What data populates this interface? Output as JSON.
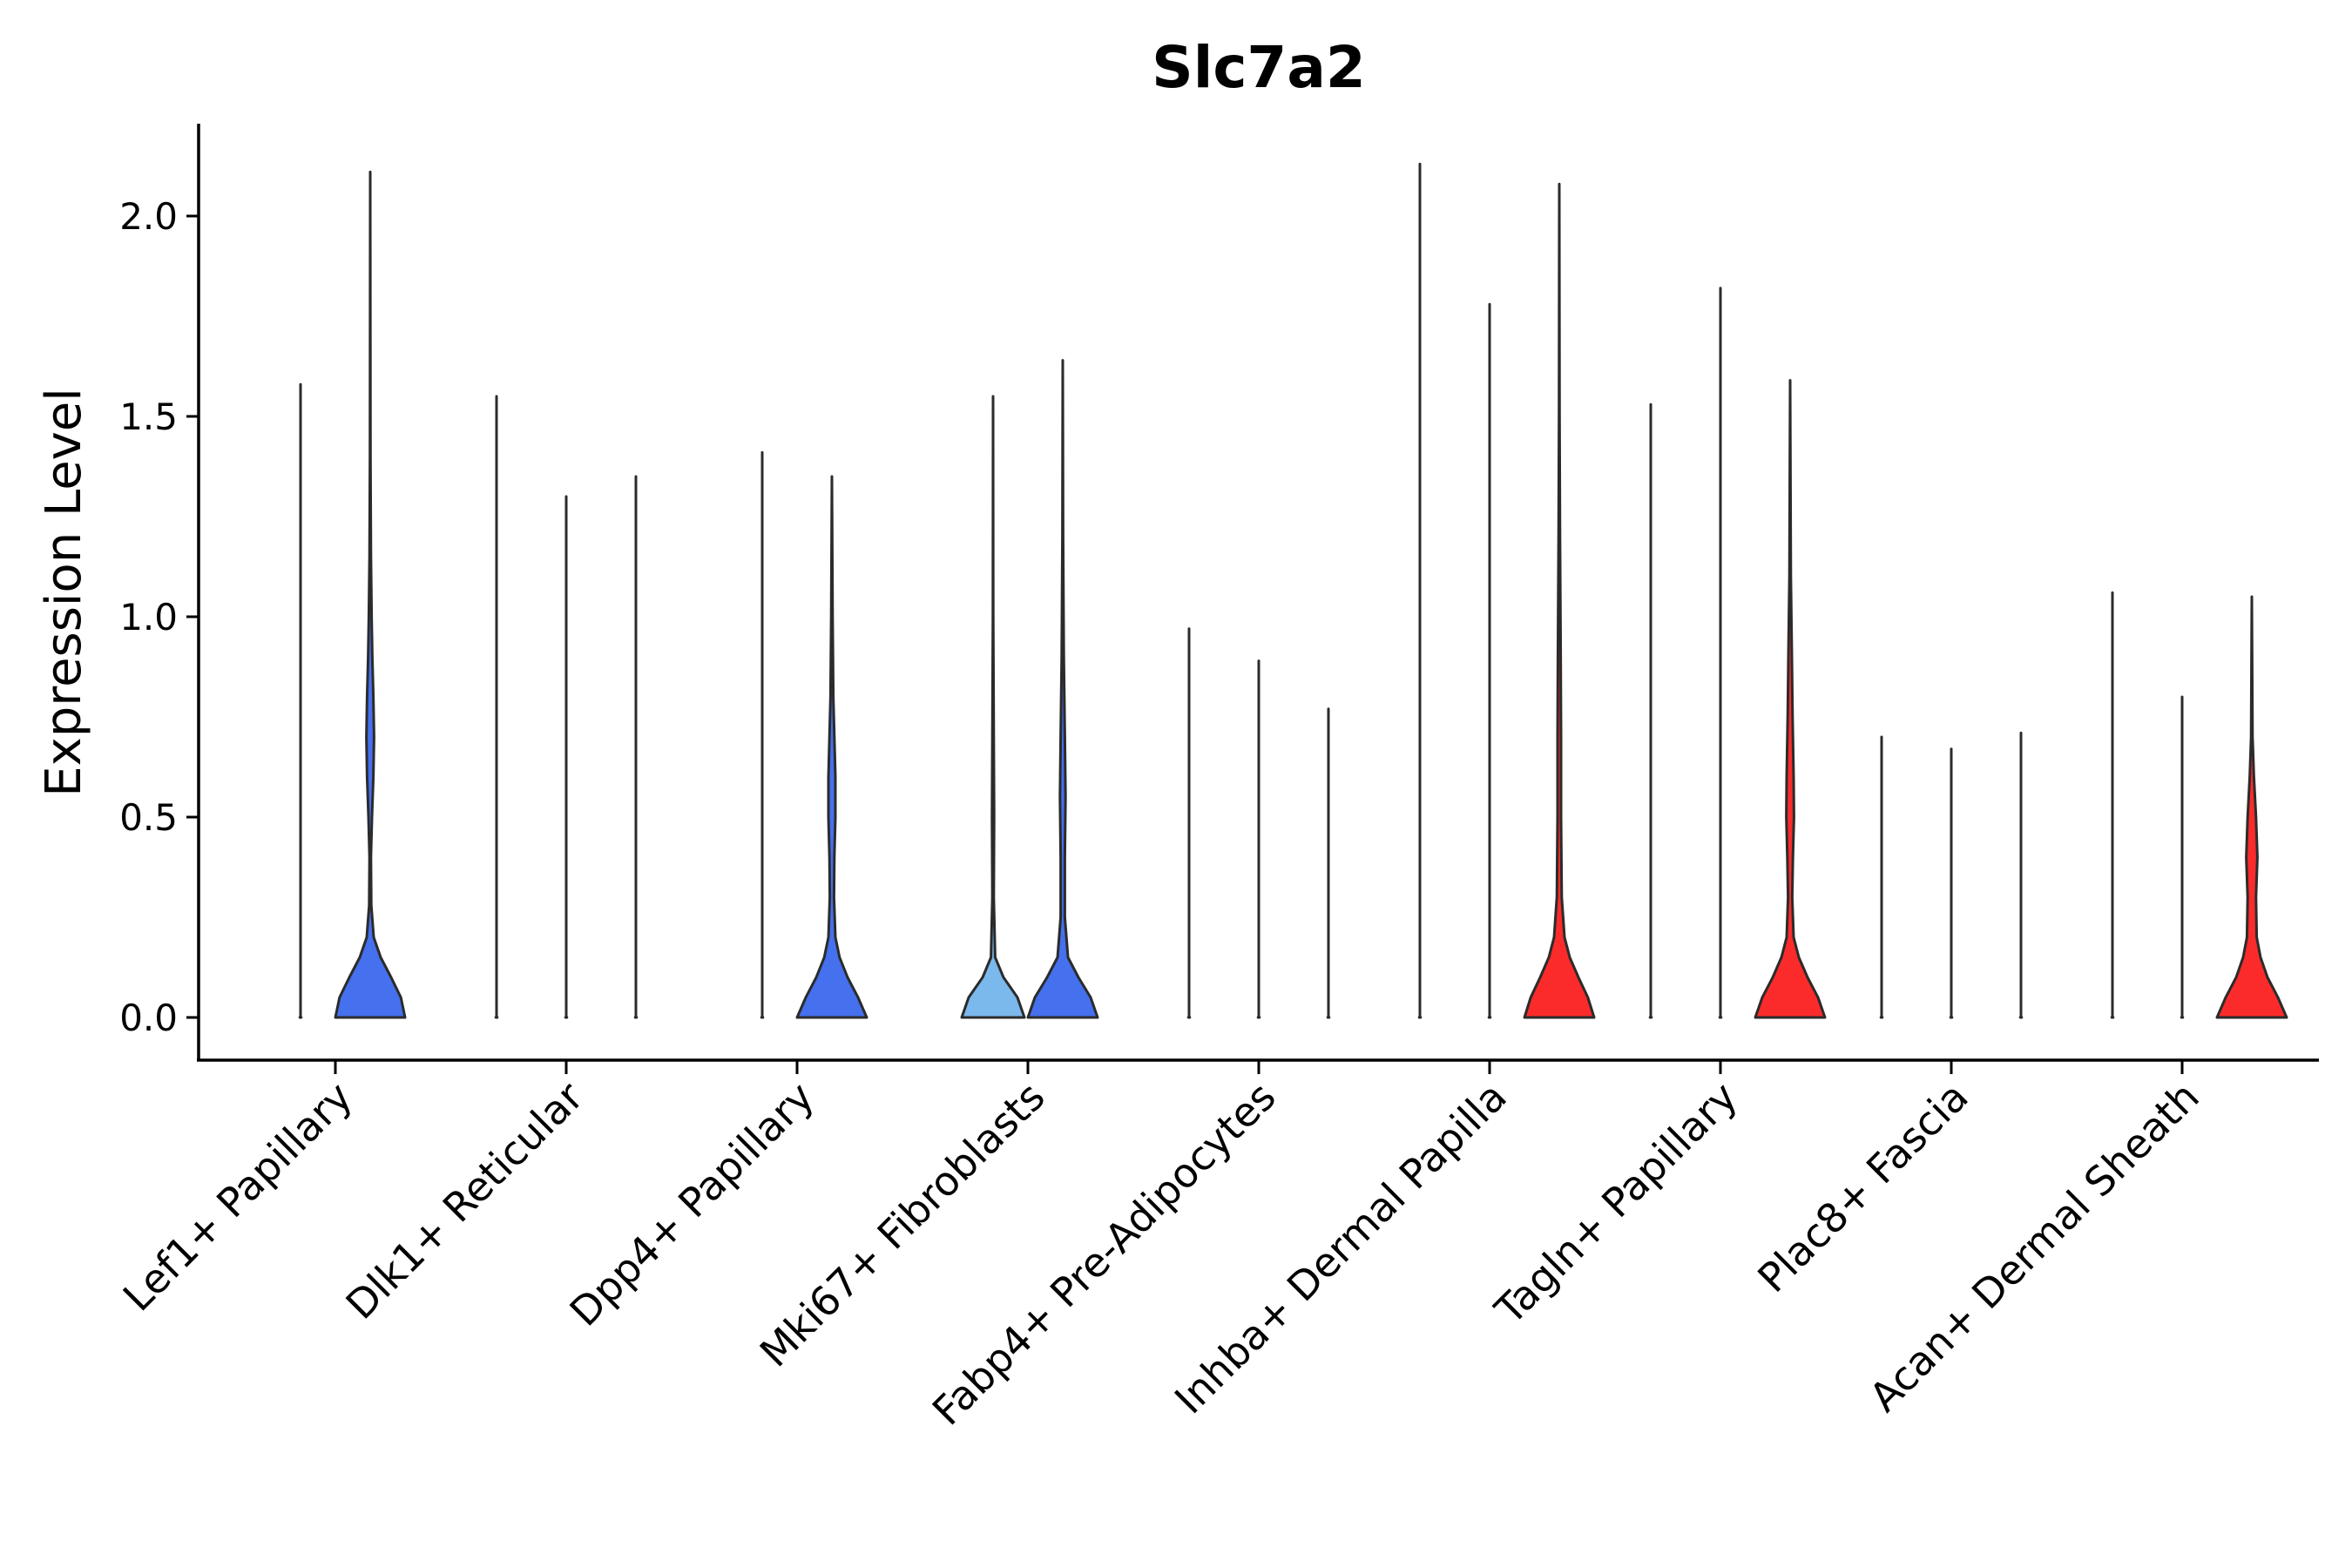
{
  "chart_data": {
    "type": "violin",
    "title": "Slc7a2",
    "xlabel": "",
    "ylabel": "Expression Level",
    "ylim": [
      -0.1,
      2.25
    ],
    "yticks": [
      0.0,
      0.5,
      1.0,
      1.5,
      2.0
    ],
    "ytick_labels": [
      "0.0",
      "0.5",
      "1.0",
      "1.5",
      "2.0"
    ],
    "grid": false,
    "legend": "none",
    "groups": [
      {
        "label": "Lef1+ Papillary",
        "violins": [
          {
            "color": "#4a6ff0",
            "max": 1.58,
            "profile": [
              [
                0.0,
                0.02
              ],
              [
                0.003,
                0.0
              ]
            ]
          },
          {
            "color": "#4570ee",
            "max": 2.11,
            "profile": [
              [
                0.0,
                1.0
              ],
              [
                0.05,
                0.88
              ],
              [
                0.1,
                0.6
              ],
              [
                0.15,
                0.3
              ],
              [
                0.2,
                0.1
              ],
              [
                0.28,
                0.03
              ],
              [
                0.4,
                0.02
              ],
              [
                0.5,
                0.05
              ],
              [
                0.6,
                0.09
              ],
              [
                0.7,
                0.11
              ],
              [
                0.8,
                0.09
              ],
              [
                0.9,
                0.06
              ],
              [
                1.0,
                0.04
              ],
              [
                1.15,
                0.02
              ],
              [
                1.4,
                0.008
              ],
              [
                2.11,
                0.0
              ]
            ]
          }
        ]
      },
      {
        "label": "Dlk1+ Reticular",
        "violins": [
          {
            "color": "#4a6ff0",
            "max": 1.55,
            "profile": [
              [
                0.0,
                0.02
              ],
              [
                0.003,
                0.0
              ]
            ]
          },
          {
            "color": "#4a6ff0",
            "max": 1.3,
            "profile": [
              [
                0.0,
                0.02
              ],
              [
                0.003,
                0.0
              ]
            ]
          },
          {
            "color": "#4a6ff0",
            "max": 1.35,
            "profile": [
              [
                0.0,
                0.02
              ],
              [
                0.003,
                0.0
              ]
            ]
          }
        ]
      },
      {
        "label": "Dpp4+ Papillary",
        "violins": [
          {
            "color": "#4a6ff0",
            "max": 1.41,
            "profile": [
              [
                0.0,
                0.02
              ],
              [
                0.003,
                0.0
              ]
            ]
          },
          {
            "color": "#4570ee",
            "max": 1.35,
            "profile": [
              [
                0.0,
                1.0
              ],
              [
                0.05,
                0.75
              ],
              [
                0.1,
                0.45
              ],
              [
                0.15,
                0.22
              ],
              [
                0.2,
                0.1
              ],
              [
                0.3,
                0.06
              ],
              [
                0.4,
                0.07
              ],
              [
                0.5,
                0.1
              ],
              [
                0.6,
                0.1
              ],
              [
                0.7,
                0.07
              ],
              [
                0.8,
                0.04
              ],
              [
                1.0,
                0.02
              ],
              [
                1.35,
                0.0
              ]
            ]
          }
        ]
      },
      {
        "label": "Mki67+ Fibroblasts",
        "violins": [
          {
            "color": "#7bb8ec",
            "max": 1.55,
            "profile": [
              [
                0.0,
                0.9
              ],
              [
                0.05,
                0.7
              ],
              [
                0.1,
                0.3
              ],
              [
                0.15,
                0.06
              ],
              [
                0.3,
                0.02
              ],
              [
                0.5,
                0.03
              ],
              [
                0.7,
                0.02
              ],
              [
                1.0,
                0.005
              ],
              [
                1.55,
                0.0
              ]
            ]
          },
          {
            "color": "#4570ee",
            "max": 1.64,
            "profile": [
              [
                0.0,
                1.0
              ],
              [
                0.05,
                0.8
              ],
              [
                0.1,
                0.45
              ],
              [
                0.15,
                0.15
              ],
              [
                0.25,
                0.06
              ],
              [
                0.4,
                0.06
              ],
              [
                0.55,
                0.08
              ],
              [
                0.7,
                0.06
              ],
              [
                0.9,
                0.03
              ],
              [
                1.2,
                0.01
              ],
              [
                1.64,
                0.0
              ]
            ]
          }
        ]
      },
      {
        "label": "Fabp4+ Pre-Adipocytes",
        "violins": [
          {
            "color": "#4a6ff0",
            "max": 0.97,
            "profile": [
              [
                0.0,
                0.02
              ],
              [
                0.003,
                0.0
              ]
            ]
          },
          {
            "color": "#4a6ff0",
            "max": 0.89,
            "profile": [
              [
                0.0,
                0.02
              ],
              [
                0.003,
                0.0
              ]
            ]
          },
          {
            "color": "#4a6ff0",
            "max": 0.77,
            "profile": [
              [
                0.0,
                0.02
              ],
              [
                0.003,
                0.0
              ]
            ]
          }
        ]
      },
      {
        "label": "Inhba+ Dermal Papilla",
        "violins": [
          {
            "color": "#4a6ff0",
            "max": 2.13,
            "profile": [
              [
                0.0,
                0.02
              ],
              [
                0.003,
                0.0
              ]
            ]
          },
          {
            "color": "#4a6ff0",
            "max": 1.78,
            "profile": [
              [
                0.0,
                0.02
              ],
              [
                0.003,
                0.0
              ]
            ]
          },
          {
            "color": "#fb2b2b",
            "max": 2.08,
            "profile": [
              [
                0.0,
                1.0
              ],
              [
                0.05,
                0.82
              ],
              [
                0.1,
                0.55
              ],
              [
                0.15,
                0.3
              ],
              [
                0.2,
                0.15
              ],
              [
                0.3,
                0.07
              ],
              [
                0.5,
                0.05
              ],
              [
                0.7,
                0.05
              ],
              [
                0.9,
                0.04
              ],
              [
                1.2,
                0.02
              ],
              [
                1.5,
                0.008
              ],
              [
                2.08,
                0.0
              ]
            ]
          }
        ]
      },
      {
        "label": "Tagln+ Papillary",
        "violins": [
          {
            "color": "#4a6ff0",
            "max": 1.53,
            "profile": [
              [
                0.0,
                0.02
              ],
              [
                0.003,
                0.0
              ]
            ]
          },
          {
            "color": "#4a6ff0",
            "max": 1.82,
            "profile": [
              [
                0.0,
                0.02
              ],
              [
                0.003,
                0.0
              ]
            ]
          },
          {
            "color": "#fb2b2b",
            "max": 1.59,
            "profile": [
              [
                0.0,
                1.0
              ],
              [
                0.05,
                0.8
              ],
              [
                0.1,
                0.5
              ],
              [
                0.15,
                0.25
              ],
              [
                0.2,
                0.1
              ],
              [
                0.3,
                0.06
              ],
              [
                0.4,
                0.08
              ],
              [
                0.5,
                0.11
              ],
              [
                0.6,
                0.1
              ],
              [
                0.75,
                0.07
              ],
              [
                0.9,
                0.05
              ],
              [
                1.1,
                0.02
              ],
              [
                1.59,
                0.0
              ]
            ]
          }
        ]
      },
      {
        "label": "Plac8+ Fascia",
        "violins": [
          {
            "color": "#4a6ff0",
            "max": 0.7,
            "profile": [
              [
                0.0,
                0.02
              ],
              [
                0.003,
                0.0
              ]
            ]
          },
          {
            "color": "#4a6ff0",
            "max": 0.67,
            "profile": [
              [
                0.0,
                0.02
              ],
              [
                0.003,
                0.0
              ]
            ]
          },
          {
            "color": "#4a6ff0",
            "max": 0.71,
            "profile": [
              [
                0.0,
                0.02
              ],
              [
                0.003,
                0.0
              ]
            ]
          }
        ]
      },
      {
        "label": "Acan+ Dermal Sheath",
        "violins": [
          {
            "color": "#4a6ff0",
            "max": 1.06,
            "profile": [
              [
                0.0,
                0.02
              ],
              [
                0.003,
                0.0
              ]
            ]
          },
          {
            "color": "#4a6ff0",
            "max": 0.8,
            "profile": [
              [
                0.0,
                0.02
              ],
              [
                0.003,
                0.0
              ]
            ]
          },
          {
            "color": "#fb2b2b",
            "max": 1.05,
            "profile": [
              [
                0.0,
                1.0
              ],
              [
                0.05,
                0.75
              ],
              [
                0.1,
                0.45
              ],
              [
                0.15,
                0.25
              ],
              [
                0.2,
                0.14
              ],
              [
                0.3,
                0.12
              ],
              [
                0.4,
                0.16
              ],
              [
                0.5,
                0.12
              ],
              [
                0.6,
                0.06
              ],
              [
                0.7,
                0.02
              ],
              [
                1.05,
                0.0
              ]
            ]
          }
        ]
      }
    ]
  }
}
